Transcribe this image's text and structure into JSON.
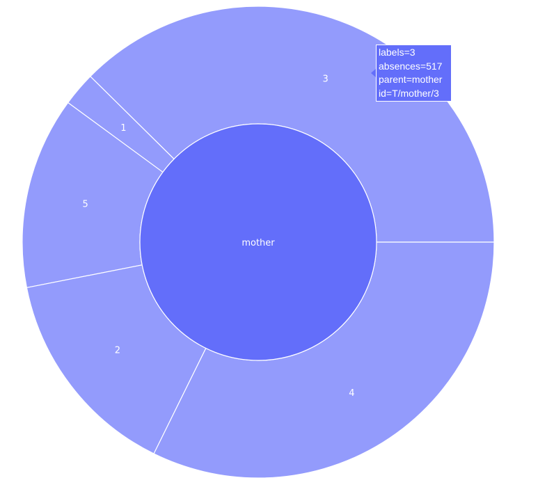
{
  "chart_data": {
    "type": "sunburst",
    "root": {
      "label": "mother",
      "id": "T/mother",
      "value": 1375
    },
    "children": [
      {
        "label": "3",
        "value": 517,
        "id": "T/mother/3",
        "parent": "mother"
      },
      {
        "label": "1",
        "value": 32,
        "id": "T/mother/1",
        "parent": "mother"
      },
      {
        "label": "5",
        "value": 181,
        "id": "T/mother/5",
        "parent": "mother"
      },
      {
        "label": "2",
        "value": 201,
        "id": "T/mother/2",
        "parent": "mother"
      },
      {
        "label": "4",
        "value": 444,
        "id": "T/mother/4",
        "parent": "mother"
      }
    ],
    "colors": {
      "root": "#636efa",
      "children": "#939bfc",
      "separator": "#ffffff",
      "label": "#ffffff"
    }
  },
  "tooltip": {
    "line1": "labels=3",
    "line2": "absences=517",
    "line3": "parent=mother",
    "line4": "id=T/mother/3"
  }
}
